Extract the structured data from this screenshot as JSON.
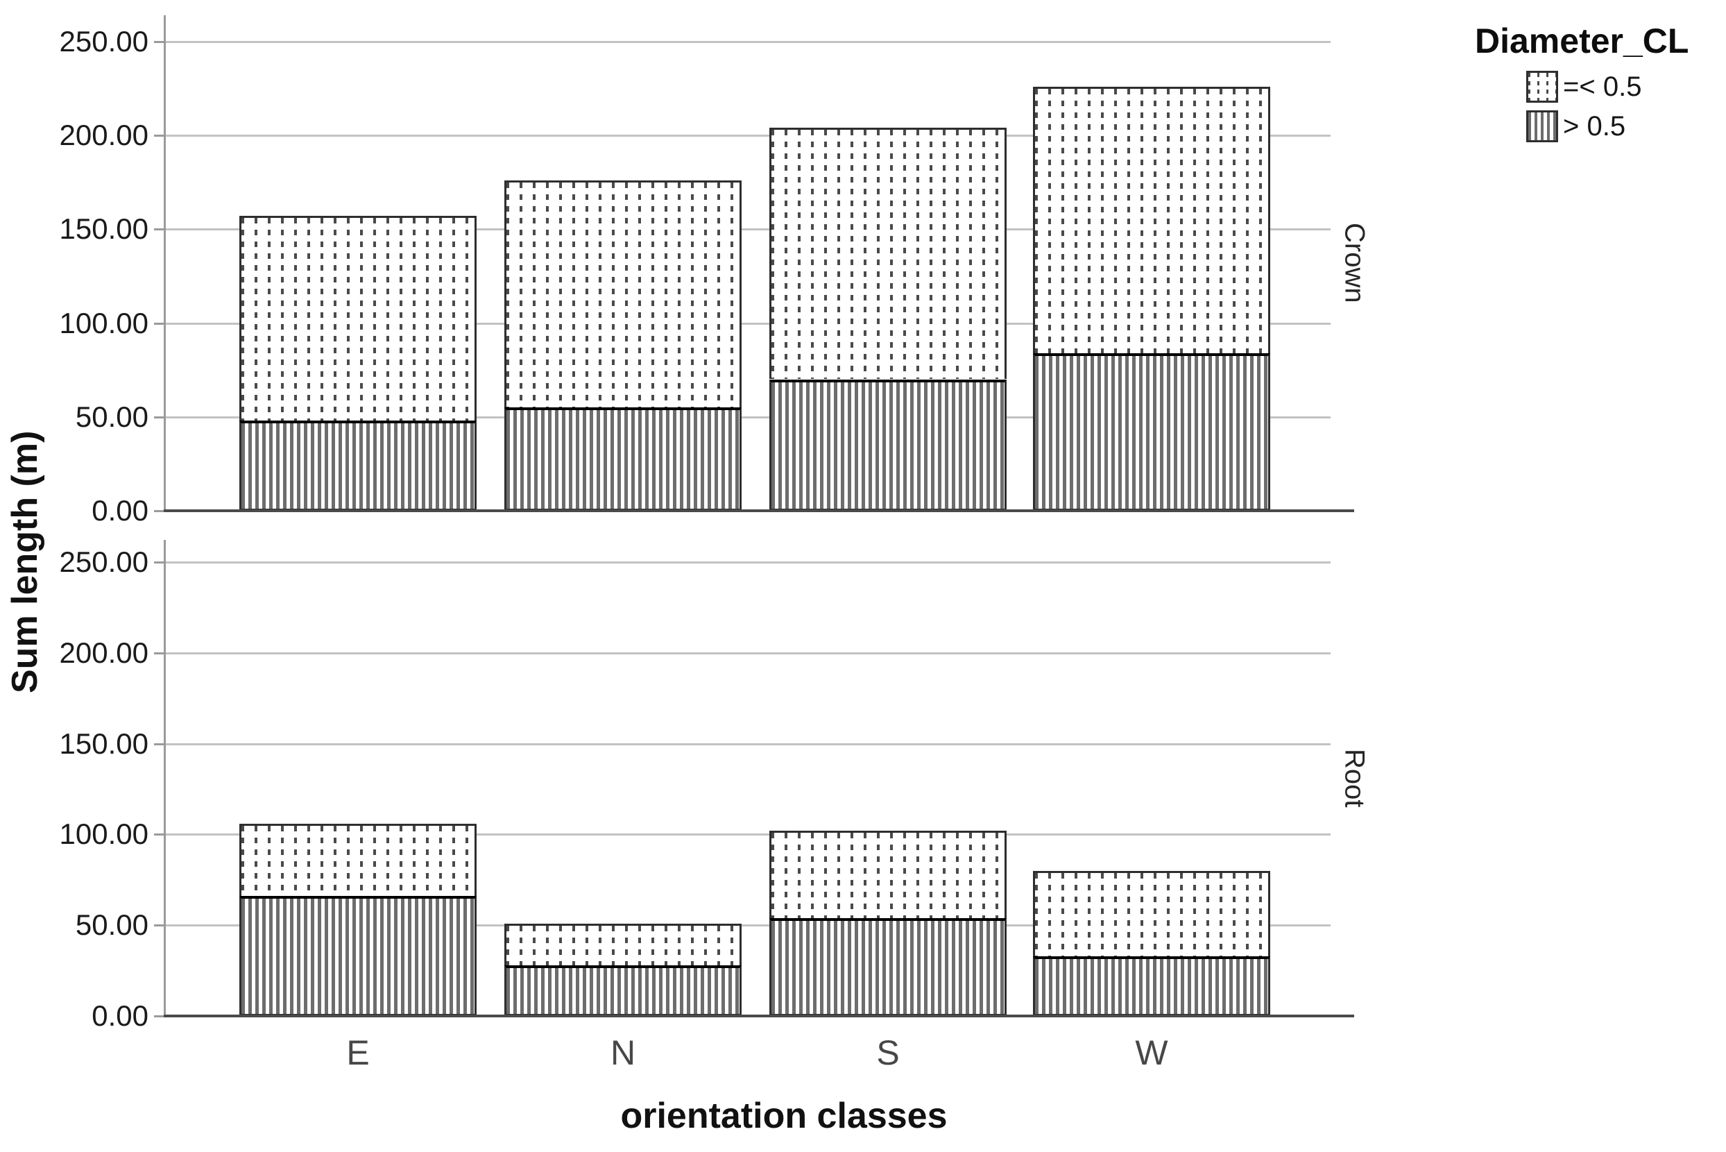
{
  "figure": {
    "y_axis_title": "Sum length (m)",
    "x_axis_title": "orientation classes"
  },
  "legend": {
    "title": "Diameter_CL",
    "items": [
      {
        "label": "=< 0.5",
        "pattern": "dotted"
      },
      {
        "label": "> 0.5",
        "pattern": "vertical-lines"
      }
    ]
  },
  "chart_data": {
    "type": "bar",
    "subtype": "stacked",
    "orientation": "vertical",
    "categories": [
      "E",
      "N",
      "S",
      "W"
    ],
    "xlabel": "orientation classes",
    "ylabel": "Sum length (m)",
    "yticks": [
      0,
      50,
      100,
      150,
      200,
      250
    ],
    "y_tick_decimals": 2,
    "ylim": [
      0,
      260
    ],
    "grid": "horizontal-gridlines",
    "legend_title": "Diameter_CL",
    "legend_position": "top-right",
    "stack_bottom_series": "> 0.5",
    "panels": [
      {
        "label": "Crown",
        "series": [
          {
            "name": "=< 0.5",
            "values": [
              109,
              121,
              134,
              142
            ]
          },
          {
            "name": "> 0.5",
            "values": [
              48,
              55,
              70,
              84
            ]
          }
        ],
        "totals": [
          157,
          176,
          204,
          226
        ]
      },
      {
        "label": "Root",
        "series": [
          {
            "name": "=< 0.5",
            "values": [
              40,
              23,
              48,
              47
            ]
          },
          {
            "name": "> 0.5",
            "values": [
              66,
              28,
              54,
              33
            ]
          }
        ],
        "totals": [
          106,
          51,
          102,
          80
        ]
      }
    ]
  },
  "colors": {
    "background": "#ffffff",
    "pattern_ink": "#4a4a4a",
    "bar_border": "#2e2e2e",
    "gridline": "#c2c2c2",
    "axis": "#9a9a9a",
    "baseline": "#4a4a4a",
    "text": "#1a1a1a"
  }
}
